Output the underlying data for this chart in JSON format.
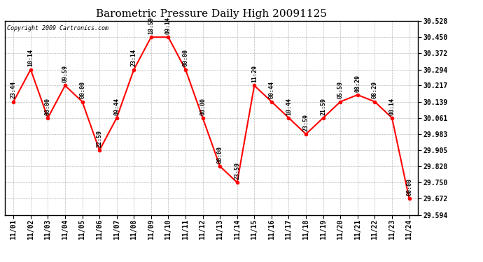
{
  "title": "Barometric Pressure Daily High 20091125",
  "copyright": "Copyright 2009 Cartronics.com",
  "dates": [
    "11/01",
    "11/02",
    "11/03",
    "11/04",
    "11/05",
    "11/06",
    "11/07",
    "11/08",
    "11/09",
    "11/10",
    "11/11",
    "11/12",
    "11/13",
    "11/14",
    "11/15",
    "11/16",
    "11/17",
    "11/18",
    "11/19",
    "11/20",
    "11/21",
    "11/22",
    "11/23",
    "11/24"
  ],
  "values": [
    30.139,
    30.294,
    30.061,
    30.217,
    30.139,
    29.905,
    30.061,
    30.294,
    30.45,
    30.45,
    30.294,
    30.061,
    29.828,
    29.75,
    30.217,
    30.139,
    30.061,
    29.983,
    30.061,
    30.139,
    30.172,
    30.139,
    30.061,
    29.672
  ],
  "labels": [
    "23:44",
    "10:14",
    "00:00",
    "09:59",
    "00:00",
    "22:59",
    "09:44",
    "23:14",
    "18:59",
    "09:14",
    "00:00",
    "00:00",
    "00:00",
    "23:59",
    "11:29",
    "00:44",
    "10:44",
    "23:59",
    "21:59",
    "05:59",
    "08:29",
    "08:29",
    "00:14",
    "00:00"
  ],
  "ylim": [
    29.594,
    30.528
  ],
  "yticks": [
    29.594,
    29.672,
    29.75,
    29.828,
    29.905,
    29.983,
    30.061,
    30.139,
    30.217,
    30.294,
    30.372,
    30.45,
    30.528
  ],
  "line_color": "red",
  "marker_color": "red",
  "bg_color": "white",
  "grid_color": "#bbbbbb",
  "title_fontsize": 11,
  "label_fontsize": 6,
  "tick_fontsize": 7,
  "copyright_fontsize": 6
}
